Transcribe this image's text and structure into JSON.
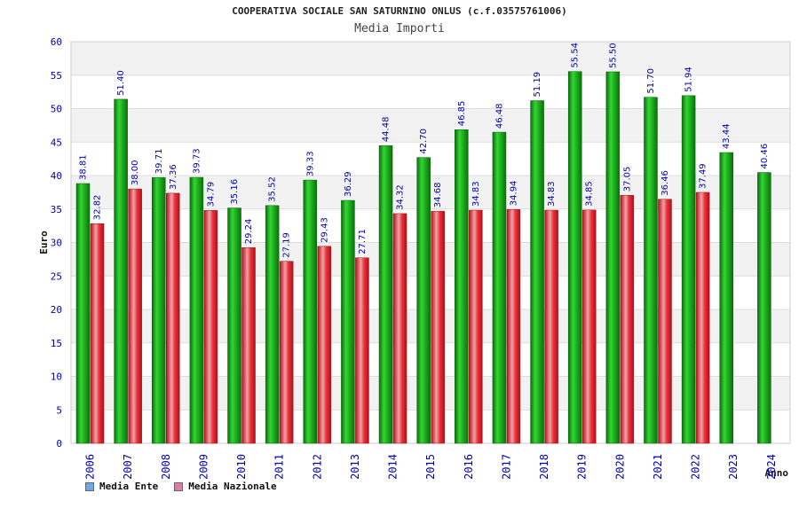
{
  "title": "COOPERATIVA SOCIALE SAN SATURNINO ONLUS (c.f.03575761006)",
  "subtitle": "Media Importi",
  "legend": {
    "ente": "Media Ente",
    "nazionale": "Media Nazionale"
  },
  "colors": {
    "ente": "#1fa81f",
    "nazionale": "#e8323c",
    "legend_ente": "#6aa8ea",
    "legend_nazionale": "#e07aa6",
    "axis_text": "#0000aa",
    "band": "#f2f2f2"
  },
  "chart_data": {
    "type": "bar",
    "xlabel": "Anno",
    "ylabel": "Euro",
    "ylim": [
      0,
      60
    ],
    "yticks": [
      0,
      5,
      10,
      15,
      20,
      25,
      30,
      35,
      40,
      45,
      50,
      55,
      60
    ],
    "grid": true,
    "legend_position": "bottom-left",
    "categories": [
      "2006",
      "2007",
      "2008",
      "2009",
      "2010",
      "2011",
      "2012",
      "2013",
      "2014",
      "2015",
      "2016",
      "2017",
      "2018",
      "2019",
      "2020",
      "2021",
      "2022",
      "2023",
      "2024"
    ],
    "series": [
      {
        "name": "Media Ente",
        "values": [
          38.81,
          51.4,
          39.71,
          39.73,
          35.16,
          35.52,
          39.33,
          36.29,
          44.48,
          42.7,
          46.85,
          46.48,
          51.19,
          55.54,
          55.5,
          51.7,
          51.94,
          43.44,
          40.46
        ],
        "labels": [
          "38.81",
          "51.40",
          "39.71",
          "39.73",
          "35.16",
          "35.52",
          "39.33",
          "36.29",
          "44.48",
          "42.70",
          "46.85",
          "46.48",
          "51.19",
          "55.54",
          "55.50",
          "51.70",
          "51.94",
          "43.44",
          "40.46"
        ]
      },
      {
        "name": "Media Nazionale",
        "values": [
          32.82,
          38.0,
          37.36,
          34.79,
          29.24,
          27.19,
          29.43,
          27.71,
          34.32,
          34.68,
          34.83,
          34.94,
          34.83,
          34.85,
          37.05,
          36.46,
          37.49,
          null,
          null
        ],
        "labels": [
          "32.82",
          "38.00",
          "37.36",
          "34.79",
          "29.24",
          "27.19",
          "29.43",
          "27.71",
          "34.32",
          "34.68",
          "34.83",
          "34.94",
          "34.83",
          "34.85",
          "37.05",
          "36.46",
          "37.49",
          "",
          ""
        ]
      }
    ]
  }
}
